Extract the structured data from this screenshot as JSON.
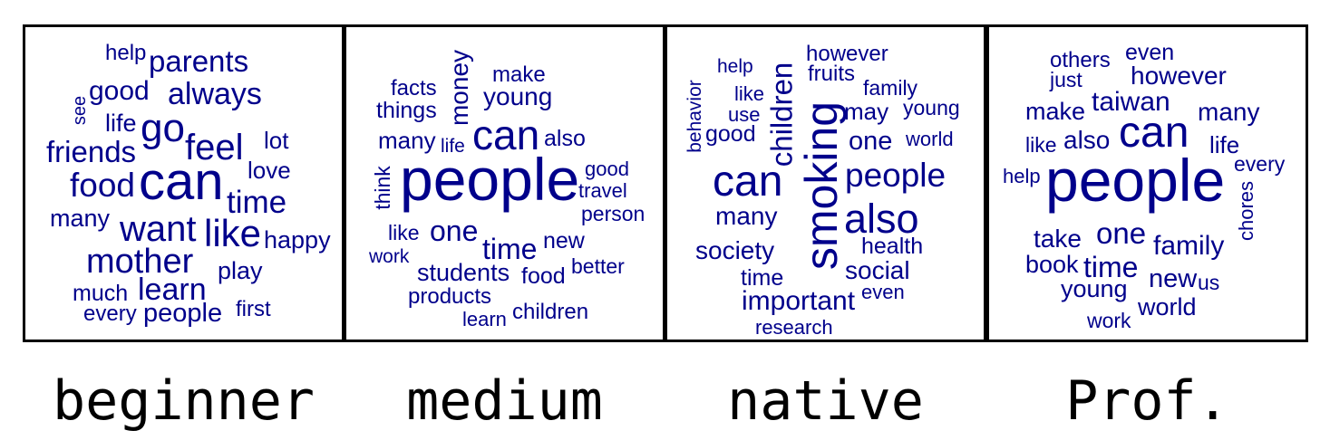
{
  "panels": [
    {
      "caption": "beginner",
      "words": [
        {
          "text": "help",
          "size": 24
        },
        {
          "text": "parents",
          "size": 33
        },
        {
          "text": "see",
          "size": 20
        },
        {
          "text": "good",
          "size": 30
        },
        {
          "text": "always",
          "size": 34
        },
        {
          "text": "life",
          "size": 27
        },
        {
          "text": "go",
          "size": 44
        },
        {
          "text": "feel",
          "size": 40
        },
        {
          "text": "lot",
          "size": 26
        },
        {
          "text": "friends",
          "size": 33
        },
        {
          "text": "love",
          "size": 26
        },
        {
          "text": "food",
          "size": 37
        },
        {
          "text": "can",
          "size": 58
        },
        {
          "text": "time",
          "size": 35
        },
        {
          "text": "many",
          "size": 27
        },
        {
          "text": "want",
          "size": 40
        },
        {
          "text": "like",
          "size": 42
        },
        {
          "text": "happy",
          "size": 27
        },
        {
          "text": "mother",
          "size": 38
        },
        {
          "text": "play",
          "size": 27
        },
        {
          "text": "learn",
          "size": 34
        },
        {
          "text": "much",
          "size": 25
        },
        {
          "text": "every",
          "size": 24
        },
        {
          "text": "people",
          "size": 29
        },
        {
          "text": "first",
          "size": 24
        }
      ]
    },
    {
      "caption": "medium",
      "words": [
        {
          "text": "money",
          "size": 28
        },
        {
          "text": "make",
          "size": 24
        },
        {
          "text": "facts",
          "size": 24
        },
        {
          "text": "young",
          "size": 28
        },
        {
          "text": "things",
          "size": 25
        },
        {
          "text": "can",
          "size": 46
        },
        {
          "text": "also",
          "size": 25
        },
        {
          "text": "many",
          "size": 26
        },
        {
          "text": "life",
          "size": 21
        },
        {
          "text": "think",
          "size": 23
        },
        {
          "text": "people",
          "size": 66
        },
        {
          "text": "good",
          "size": 22
        },
        {
          "text": "travel",
          "size": 22
        },
        {
          "text": "person",
          "size": 23
        },
        {
          "text": "like",
          "size": 23
        },
        {
          "text": "one",
          "size": 32
        },
        {
          "text": "time",
          "size": 32
        },
        {
          "text": "new",
          "size": 25
        },
        {
          "text": "work",
          "size": 21
        },
        {
          "text": "students",
          "size": 27
        },
        {
          "text": "food",
          "size": 25
        },
        {
          "text": "better",
          "size": 23
        },
        {
          "text": "products",
          "size": 24
        },
        {
          "text": "learn",
          "size": 22
        },
        {
          "text": "children",
          "size": 24
        }
      ]
    },
    {
      "caption": "native",
      "words": [
        {
          "text": "help",
          "size": 21
        },
        {
          "text": "children",
          "size": 33
        },
        {
          "text": "however",
          "size": 24
        },
        {
          "text": "fruits",
          "size": 24
        },
        {
          "text": "behavior",
          "size": 21
        },
        {
          "text": "like",
          "size": 22
        },
        {
          "text": "family",
          "size": 23
        },
        {
          "text": "use",
          "size": 22
        },
        {
          "text": "smoking",
          "size": 50
        },
        {
          "text": "may",
          "size": 26
        },
        {
          "text": "young",
          "size": 23
        },
        {
          "text": "good",
          "size": 25
        },
        {
          "text": "one",
          "size": 29
        },
        {
          "text": "world",
          "size": 22
        },
        {
          "text": "can",
          "size": 48
        },
        {
          "text": "people",
          "size": 37
        },
        {
          "text": "many",
          "size": 28
        },
        {
          "text": "also",
          "size": 45
        },
        {
          "text": "health",
          "size": 25
        },
        {
          "text": "society",
          "size": 28
        },
        {
          "text": "social",
          "size": 28
        },
        {
          "text": "time",
          "size": 25
        },
        {
          "text": "even",
          "size": 22
        },
        {
          "text": "important",
          "size": 30
        },
        {
          "text": "research",
          "size": 22
        }
      ]
    },
    {
      "caption": "Prof.",
      "words": [
        {
          "text": "others",
          "size": 24
        },
        {
          "text": "even",
          "size": 25
        },
        {
          "text": "just",
          "size": 23
        },
        {
          "text": "however",
          "size": 28
        },
        {
          "text": "taiwan",
          "size": 30
        },
        {
          "text": "make",
          "size": 27
        },
        {
          "text": "many",
          "size": 28
        },
        {
          "text": "can",
          "size": 48
        },
        {
          "text": "also",
          "size": 28
        },
        {
          "text": "like",
          "size": 23
        },
        {
          "text": "life",
          "size": 26
        },
        {
          "text": "every",
          "size": 23
        },
        {
          "text": "help",
          "size": 22
        },
        {
          "text": "people",
          "size": 66
        },
        {
          "text": "chores",
          "size": 22
        },
        {
          "text": "take",
          "size": 28
        },
        {
          "text": "one",
          "size": 33
        },
        {
          "text": "family",
          "size": 30
        },
        {
          "text": "book",
          "size": 27
        },
        {
          "text": "time",
          "size": 32
        },
        {
          "text": "new",
          "size": 29
        },
        {
          "text": "us",
          "size": 23
        },
        {
          "text": "young",
          "size": 27
        },
        {
          "text": "world",
          "size": 27
        },
        {
          "text": "work",
          "size": 23
        }
      ]
    }
  ]
}
